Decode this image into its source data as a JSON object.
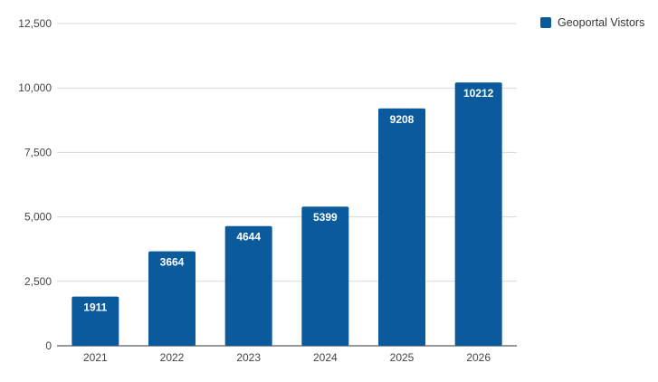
{
  "chart_data": {
    "type": "bar",
    "title": "",
    "xlabel": "",
    "ylabel": "",
    "categories": [
      "2021",
      "2022",
      "2023",
      "2024",
      "2025",
      "2026"
    ],
    "series": [
      {
        "name": "Geoportal Vistors",
        "values": [
          1911,
          3664,
          4644,
          5399,
          9208,
          10212
        ],
        "data_labels": [
          "1911",
          "3664",
          "4644",
          "5399",
          "9208",
          "10212"
        ],
        "color": "#0b5a9c"
      }
    ],
    "ylim": [
      0,
      12500
    ],
    "yticks": [
      0,
      2500,
      5000,
      7500,
      10000,
      12500
    ],
    "ytick_labels": [
      "0",
      "2,500",
      "5,000",
      "7,500",
      "10,000",
      "12,500"
    ],
    "grid": true,
    "legend_position": "top-right"
  },
  "legend": {
    "label": "Geoportal Vistors",
    "color": "#0b5a9c"
  },
  "colors": {
    "bar": "#0b5a9c",
    "grid": "#d9d9d9",
    "axis": "#333333",
    "label_text": "#ffffff",
    "tick_text": "#444444"
  }
}
